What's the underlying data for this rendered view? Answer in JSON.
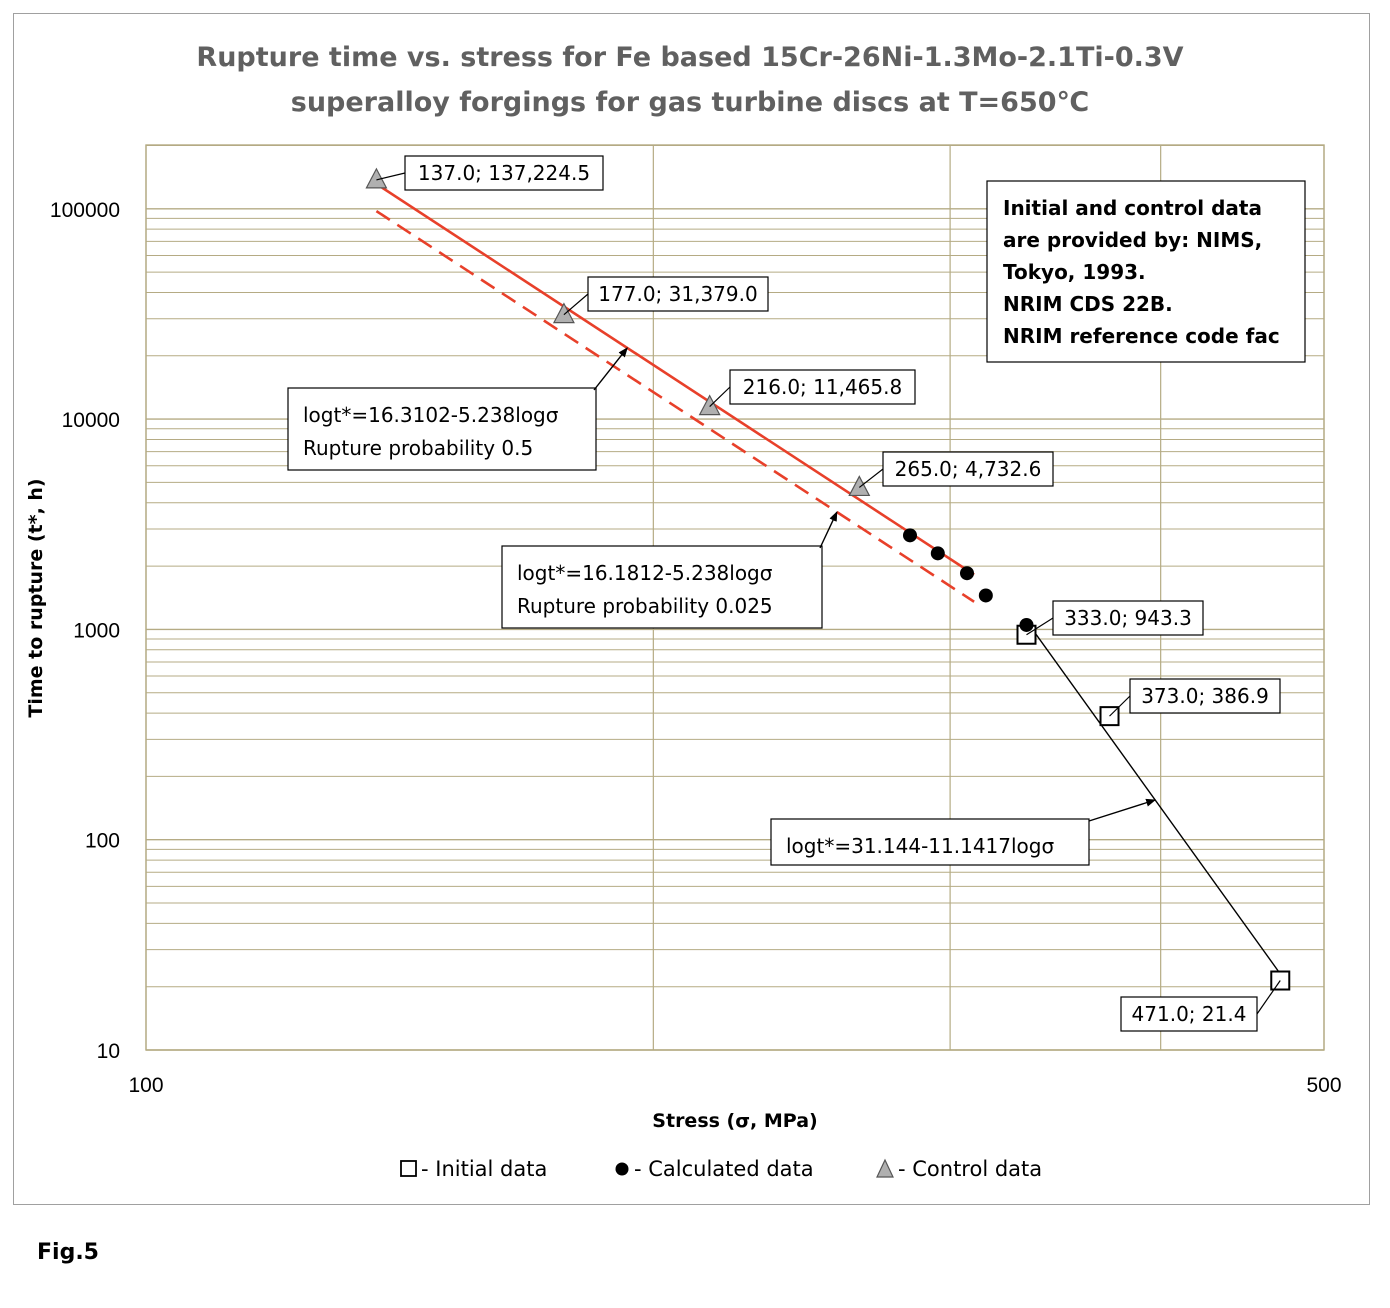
{
  "figure_label": "Fig.5",
  "chart_data": {
    "type": "scatter",
    "title": [
      "Rupture time vs. stress for Fe based 15Cr-26Ni-1.3Mo-2.1Ti-0.3V",
      "superalloy forgings for gas turbine discs at T=650℃"
    ],
    "xlabel": "Stress (σ, MPa)",
    "ylabel": "Time to rupture (t*, h)",
    "x_scale": "log",
    "y_scale": "log",
    "xlim": [
      100,
      500
    ],
    "ylim": [
      10,
      200000
    ],
    "x_ticks": [
      "100",
      "500"
    ],
    "y_ticks": [
      "10",
      "100",
      "1000",
      "10000",
      "100000"
    ],
    "grid": true,
    "legend_position": "bottom",
    "legend": [
      "- Initial data",
      "- Calculated data",
      "- Control data"
    ],
    "series": [
      {
        "name": "- Initial data",
        "marker": "open-square",
        "points": [
          [
            333.0,
            943.3
          ],
          [
            373.0,
            386.9
          ],
          [
            471.0,
            21.4
          ]
        ]
      },
      {
        "name": "- Calculated data",
        "marker": "filled-circle",
        "points": [
          [
            284,
            2800
          ],
          [
            295,
            2300
          ],
          [
            307,
            1850
          ],
          [
            315,
            1450
          ],
          [
            333,
            1050
          ]
        ]
      },
      {
        "name": "- Control data",
        "marker": "gray-triangle",
        "points": [
          [
            137.0,
            137224.5
          ],
          [
            177.0,
            31379.0
          ],
          [
            216.0,
            11465.8
          ],
          [
            265.0,
            4732.6
          ]
        ]
      }
    ],
    "fit_lines": [
      {
        "equation": "logt*=16.3102-5.238logσ",
        "probability_label": "Rupture probability 0.5",
        "style": "solid-red",
        "x_range": [
          137,
          310
        ]
      },
      {
        "equation": "logt*=16.1812-5.238logσ",
        "probability_label": "Rupture probability 0.025",
        "style": "dashed-red",
        "x_range": [
          137,
          310
        ]
      },
      {
        "equation": "logt*=31.144-11.1417logσ",
        "style": "solid-black",
        "x_range": [
          333,
          471
        ]
      }
    ],
    "point_labels": [
      "137.0; 137,224.5",
      "177.0; 31,379.0",
      "216.0; 11,465.8",
      "265.0; 4,732.6",
      "333.0; 943.3",
      "373.0; 386.9",
      "471.0; 21.4"
    ],
    "note": [
      "Initial and control data",
      "are provided by: NIMS,",
      "Tokyo, 1993.",
      "NRIM CDS 22B.",
      "NRIM reference code fac"
    ],
    "colors": {
      "fit_red": "#e8402a",
      "grid": "#b5ab84",
      "title": "#606060",
      "triangle": "#b0b0b0"
    }
  }
}
